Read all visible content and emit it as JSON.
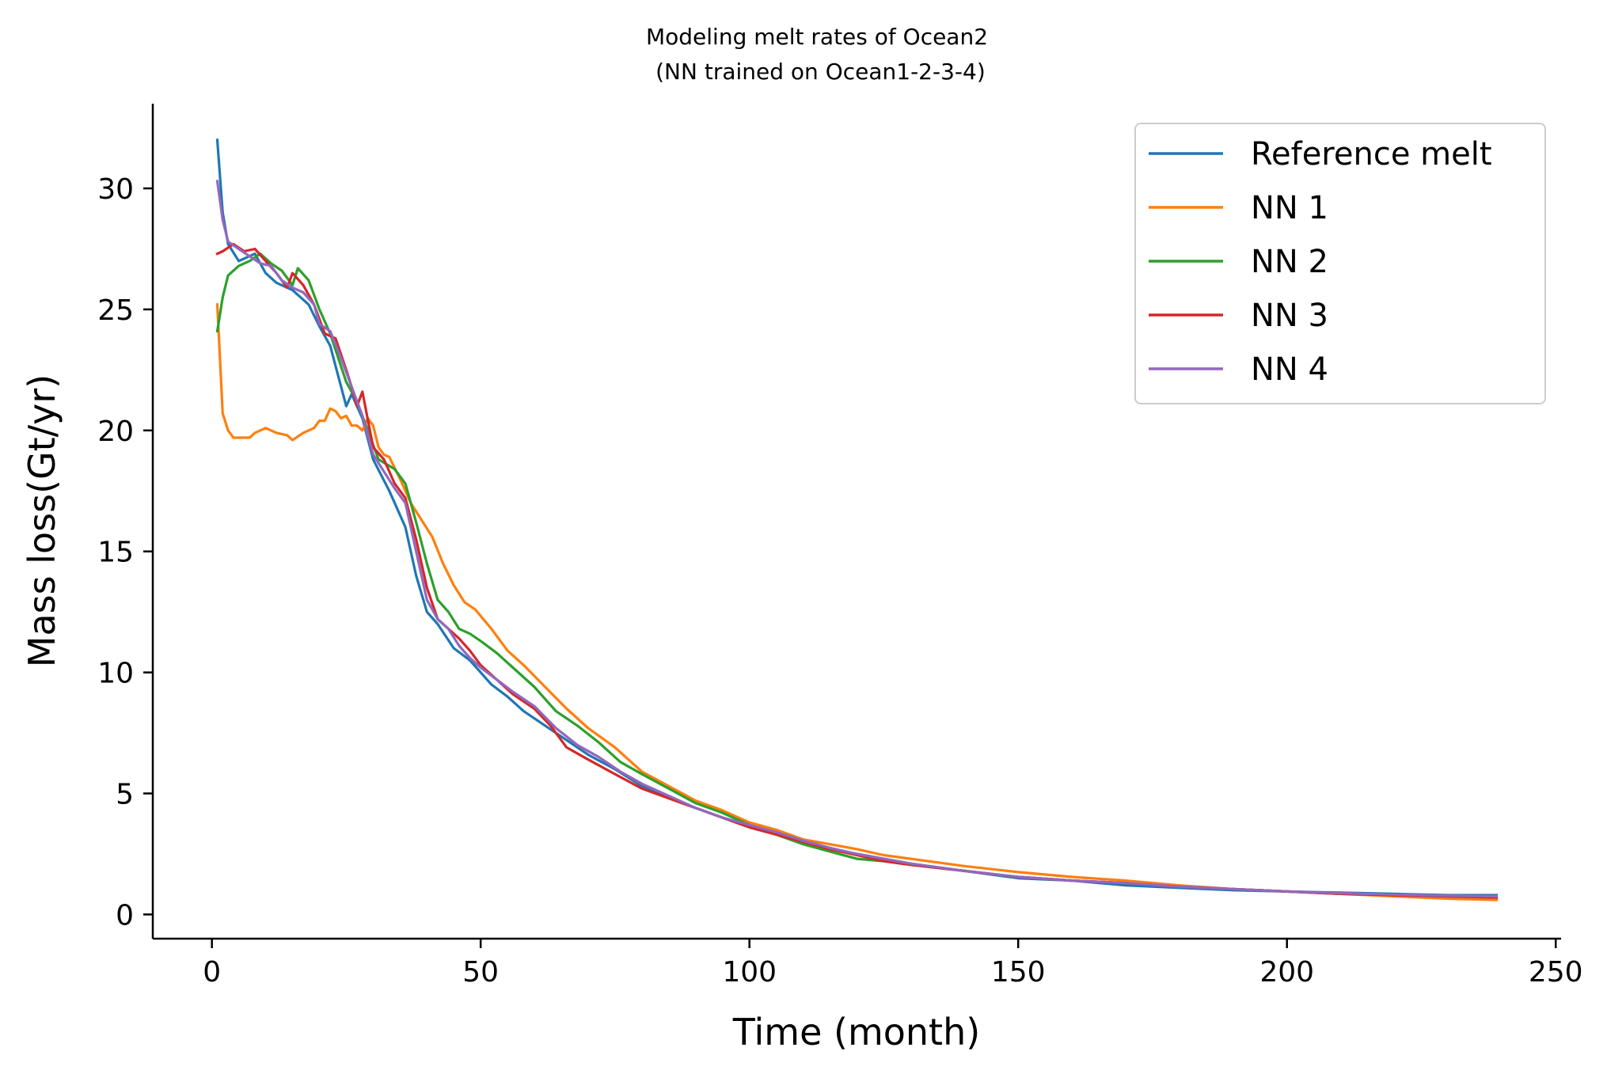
{
  "chart_data": {
    "type": "line",
    "title_line1": "Modeling melt rates of Ocean2",
    "title_line2": " (NN trained on Ocean1-2-3-4)",
    "xlabel": "Time (month)",
    "ylabel": "Mass loss(Gt/yr)",
    "xlim": [
      -11,
      251
    ],
    "ylim": [
      -1,
      33.5
    ],
    "xticks": [
      0,
      50,
      100,
      150,
      200,
      250
    ],
    "yticks": [
      0,
      5,
      10,
      15,
      20,
      25,
      30
    ],
    "legend_position": "top-right",
    "grid": false,
    "series": [
      {
        "name": "Reference melt",
        "color": "#1f77b4",
        "points": [
          [
            1,
            32
          ],
          [
            2,
            29
          ],
          [
            3,
            27.7
          ],
          [
            5,
            27.0
          ],
          [
            8,
            27.3
          ],
          [
            10,
            26.5
          ],
          [
            12,
            26.1
          ],
          [
            15,
            25.8
          ],
          [
            18,
            25.2
          ],
          [
            20,
            24.3
          ],
          [
            22,
            23.5
          ],
          [
            25,
            21.0
          ],
          [
            26,
            21.5
          ],
          [
            28,
            20.5
          ],
          [
            30,
            18.8
          ],
          [
            33,
            17.5
          ],
          [
            36,
            16.0
          ],
          [
            38,
            14.0
          ],
          [
            40,
            12.5
          ],
          [
            42,
            12.0
          ],
          [
            45,
            11.0
          ],
          [
            48,
            10.5
          ],
          [
            52,
            9.5
          ],
          [
            55,
            9.0
          ],
          [
            58,
            8.4
          ],
          [
            62,
            7.8
          ],
          [
            66,
            7.2
          ],
          [
            70,
            6.6
          ],
          [
            75,
            6.0
          ],
          [
            80,
            5.3
          ],
          [
            85,
            4.8
          ],
          [
            90,
            4.4
          ],
          [
            95,
            4.0
          ],
          [
            100,
            3.6
          ],
          [
            105,
            3.3
          ],
          [
            110,
            3.0
          ],
          [
            115,
            2.7
          ],
          [
            120,
            2.5
          ],
          [
            125,
            2.3
          ],
          [
            130,
            2.1
          ],
          [
            140,
            1.8
          ],
          [
            150,
            1.5
          ],
          [
            160,
            1.4
          ],
          [
            170,
            1.2
          ],
          [
            180,
            1.1
          ],
          [
            190,
            1.0
          ],
          [
            200,
            0.95
          ],
          [
            210,
            0.9
          ],
          [
            220,
            0.85
          ],
          [
            230,
            0.8
          ],
          [
            239,
            0.8
          ]
        ]
      },
      {
        "name": "NN 1",
        "color": "#ff7f0e",
        "points": [
          [
            1,
            25.2
          ],
          [
            2,
            20.7
          ],
          [
            3,
            20.0
          ],
          [
            4,
            19.7
          ],
          [
            7,
            19.7
          ],
          [
            8,
            19.9
          ],
          [
            10,
            20.1
          ],
          [
            12,
            19.9
          ],
          [
            14,
            19.8
          ],
          [
            15,
            19.6
          ],
          [
            17,
            19.9
          ],
          [
            19,
            20.1
          ],
          [
            20,
            20.4
          ],
          [
            21,
            20.4
          ],
          [
            22,
            20.9
          ],
          [
            23,
            20.8
          ],
          [
            24,
            20.5
          ],
          [
            25,
            20.6
          ],
          [
            26,
            20.2
          ],
          [
            27,
            20.2
          ],
          [
            28,
            20.0
          ],
          [
            29,
            20.5
          ],
          [
            30,
            20.2
          ],
          [
            31,
            19.3
          ],
          [
            32,
            19.0
          ],
          [
            33,
            18.9
          ],
          [
            35,
            18.0
          ],
          [
            37,
            17.0
          ],
          [
            39,
            16.3
          ],
          [
            41,
            15.6
          ],
          [
            43,
            14.5
          ],
          [
            45,
            13.6
          ],
          [
            47,
            12.9
          ],
          [
            49,
            12.6
          ],
          [
            52,
            11.8
          ],
          [
            55,
            10.9
          ],
          [
            58,
            10.3
          ],
          [
            62,
            9.4
          ],
          [
            66,
            8.5
          ],
          [
            70,
            7.7
          ],
          [
            75,
            6.9
          ],
          [
            80,
            5.9
          ],
          [
            85,
            5.3
          ],
          [
            90,
            4.7
          ],
          [
            95,
            4.3
          ],
          [
            100,
            3.8
          ],
          [
            105,
            3.5
          ],
          [
            110,
            3.1
          ],
          [
            115,
            2.9
          ],
          [
            120,
            2.7
          ],
          [
            125,
            2.45
          ],
          [
            130,
            2.3
          ],
          [
            140,
            2.0
          ],
          [
            150,
            1.75
          ],
          [
            160,
            1.55
          ],
          [
            170,
            1.4
          ],
          [
            180,
            1.2
          ],
          [
            190,
            1.05
          ],
          [
            200,
            0.95
          ],
          [
            210,
            0.85
          ],
          [
            220,
            0.75
          ],
          [
            230,
            0.65
          ],
          [
            239,
            0.6
          ]
        ]
      },
      {
        "name": "NN 2",
        "color": "#2ca02c",
        "points": [
          [
            1,
            24.1
          ],
          [
            2,
            25.5
          ],
          [
            3,
            26.4
          ],
          [
            5,
            26.8
          ],
          [
            7,
            27.0
          ],
          [
            9,
            27.3
          ],
          [
            11,
            26.9
          ],
          [
            13,
            26.6
          ],
          [
            15,
            26.0
          ],
          [
            16,
            26.7
          ],
          [
            18,
            26.2
          ],
          [
            20,
            25.0
          ],
          [
            22,
            24.0
          ],
          [
            25,
            22.0
          ],
          [
            27,
            21.2
          ],
          [
            29,
            20.0
          ],
          [
            31,
            18.8
          ],
          [
            34,
            18.4
          ],
          [
            36,
            17.8
          ],
          [
            38,
            16.2
          ],
          [
            40,
            14.5
          ],
          [
            42,
            13.0
          ],
          [
            44,
            12.5
          ],
          [
            46,
            11.8
          ],
          [
            48,
            11.6
          ],
          [
            50,
            11.3
          ],
          [
            53,
            10.8
          ],
          [
            56,
            10.2
          ],
          [
            60,
            9.4
          ],
          [
            64,
            8.4
          ],
          [
            68,
            7.8
          ],
          [
            72,
            7.1
          ],
          [
            76,
            6.3
          ],
          [
            80,
            5.8
          ],
          [
            85,
            5.2
          ],
          [
            90,
            4.6
          ],
          [
            95,
            4.2
          ],
          [
            100,
            3.7
          ],
          [
            105,
            3.3
          ],
          [
            110,
            2.9
          ],
          [
            115,
            2.6
          ],
          [
            120,
            2.3
          ],
          [
            125,
            2.2
          ],
          [
            130,
            2.05
          ],
          [
            140,
            1.8
          ],
          [
            150,
            1.55
          ],
          [
            160,
            1.4
          ],
          [
            170,
            1.3
          ],
          [
            180,
            1.15
          ],
          [
            190,
            1.05
          ],
          [
            200,
            0.95
          ],
          [
            210,
            0.85
          ],
          [
            220,
            0.8
          ],
          [
            230,
            0.75
          ],
          [
            239,
            0.7
          ]
        ]
      },
      {
        "name": "NN 3",
        "color": "#d62728",
        "points": [
          [
            1,
            27.3
          ],
          [
            2,
            27.4
          ],
          [
            4,
            27.7
          ],
          [
            6,
            27.4
          ],
          [
            8,
            27.5
          ],
          [
            10,
            27.0
          ],
          [
            12,
            26.5
          ],
          [
            14,
            25.9
          ],
          [
            15,
            26.5
          ],
          [
            17,
            26.0
          ],
          [
            19,
            25.2
          ],
          [
            21,
            24.0
          ],
          [
            23,
            23.8
          ],
          [
            25,
            22.5
          ],
          [
            26,
            21.8
          ],
          [
            27,
            21.0
          ],
          [
            28,
            21.6
          ],
          [
            30,
            19.3
          ],
          [
            32,
            18.8
          ],
          [
            34,
            17.8
          ],
          [
            36,
            17.2
          ],
          [
            38,
            15.5
          ],
          [
            40,
            13.5
          ],
          [
            42,
            12.2
          ],
          [
            44,
            11.8
          ],
          [
            46,
            11.4
          ],
          [
            48,
            10.9
          ],
          [
            50,
            10.3
          ],
          [
            53,
            9.7
          ],
          [
            56,
            9.1
          ],
          [
            60,
            8.5
          ],
          [
            63,
            7.8
          ],
          [
            66,
            6.9
          ],
          [
            70,
            6.4
          ],
          [
            75,
            5.8
          ],
          [
            80,
            5.2
          ],
          [
            85,
            4.8
          ],
          [
            90,
            4.4
          ],
          [
            95,
            4.0
          ],
          [
            100,
            3.6
          ],
          [
            105,
            3.3
          ],
          [
            110,
            3.0
          ],
          [
            115,
            2.7
          ],
          [
            120,
            2.45
          ],
          [
            125,
            2.2
          ],
          [
            130,
            2.05
          ],
          [
            140,
            1.8
          ],
          [
            150,
            1.55
          ],
          [
            160,
            1.4
          ],
          [
            170,
            1.3
          ],
          [
            180,
            1.15
          ],
          [
            190,
            1.05
          ],
          [
            200,
            0.95
          ],
          [
            210,
            0.85
          ],
          [
            220,
            0.8
          ],
          [
            230,
            0.75
          ],
          [
            239,
            0.7
          ]
        ]
      },
      {
        "name": "NN 4",
        "color": "#9467bd",
        "points": [
          [
            1,
            30.3
          ],
          [
            2,
            28.7
          ],
          [
            3,
            27.8
          ],
          [
            5,
            27.5
          ],
          [
            7,
            27.2
          ],
          [
            9,
            26.9
          ],
          [
            11,
            26.8
          ],
          [
            13,
            26.2
          ],
          [
            15,
            25.9
          ],
          [
            17,
            25.7
          ],
          [
            19,
            25.2
          ],
          [
            20,
            24.4
          ],
          [
            22,
            24.1
          ],
          [
            24,
            23.0
          ],
          [
            26,
            21.8
          ],
          [
            28,
            20.6
          ],
          [
            30,
            19.0
          ],
          [
            32,
            18.3
          ],
          [
            34,
            17.6
          ],
          [
            36,
            17.0
          ],
          [
            38,
            15.0
          ],
          [
            40,
            13.0
          ],
          [
            42,
            12.2
          ],
          [
            44,
            11.8
          ],
          [
            46,
            11.1
          ],
          [
            48,
            10.6
          ],
          [
            50,
            10.2
          ],
          [
            53,
            9.7
          ],
          [
            56,
            9.2
          ],
          [
            60,
            8.6
          ],
          [
            64,
            7.7
          ],
          [
            68,
            7.0
          ],
          [
            72,
            6.5
          ],
          [
            76,
            5.9
          ],
          [
            80,
            5.4
          ],
          [
            85,
            4.9
          ],
          [
            90,
            4.4
          ],
          [
            95,
            4.0
          ],
          [
            100,
            3.7
          ],
          [
            105,
            3.4
          ],
          [
            110,
            3.05
          ],
          [
            115,
            2.75
          ],
          [
            120,
            2.5
          ],
          [
            125,
            2.3
          ],
          [
            130,
            2.1
          ],
          [
            140,
            1.8
          ],
          [
            150,
            1.55
          ],
          [
            160,
            1.4
          ],
          [
            170,
            1.3
          ],
          [
            180,
            1.15
          ],
          [
            190,
            1.05
          ],
          [
            200,
            0.95
          ],
          [
            210,
            0.88
          ],
          [
            220,
            0.82
          ],
          [
            230,
            0.78
          ],
          [
            239,
            0.75
          ]
        ]
      }
    ]
  }
}
